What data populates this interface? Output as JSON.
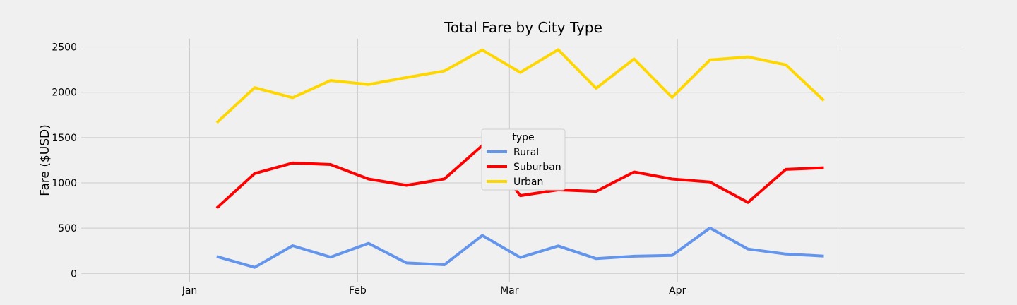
{
  "chart_data": {
    "type": "line",
    "title": "Total Fare by City Type",
    "xlabel": "",
    "ylabel": "Fare ($USD)",
    "x": [
      "2019-01-06",
      "2019-01-13",
      "2019-01-20",
      "2019-01-27",
      "2019-02-03",
      "2019-02-10",
      "2019-02-17",
      "2019-02-24",
      "2019-03-03",
      "2019-03-10",
      "2019-03-17",
      "2019-03-24",
      "2019-03-31",
      "2019-04-07",
      "2019-04-14",
      "2019-04-21",
      "2019-04-28"
    ],
    "xlim": [
      "2018-12-12",
      "2019-05-24"
    ],
    "ylim": [
      -60,
      2590
    ],
    "x_ticks": [
      {
        "date": "2019-01-01",
        "label": "Jan"
      },
      {
        "date": "2019-02-01",
        "label": "Feb"
      },
      {
        "date": "2019-03-01",
        "label": "Mar"
      },
      {
        "date": "2019-04-01",
        "label": "Apr"
      },
      {
        "date": "2019-05-01",
        "label": ""
      }
    ],
    "y_ticks": [
      0,
      500,
      1000,
      1500,
      2000,
      2500
    ],
    "grid": true,
    "legend": {
      "title": "type",
      "placement": "center"
    },
    "series": [
      {
        "name": "Rural",
        "color": "#6495ed",
        "values": [
          187,
          67,
          306,
          180,
          333,
          116,
          96,
          419,
          176,
          304,
          164,
          190,
          199,
          502,
          270,
          214,
          192
        ]
      },
      {
        "name": "Suburban",
        "color": "#ff0000",
        "values": [
          722,
          1104,
          1219,
          1203,
          1043,
          973,
          1044,
          1412,
          859,
          923,
          906,
          1121,
          1043,
          1009,
          783,
          1149,
          1167
        ]
      },
      {
        "name": "Urban",
        "color": "#ffd700",
        "values": [
          1664,
          2051,
          1940,
          2129,
          2086,
          2162,
          2235,
          2467,
          2219,
          2470,
          2044,
          2368,
          1943,
          2357,
          2390,
          2303,
          1909
        ]
      }
    ]
  }
}
